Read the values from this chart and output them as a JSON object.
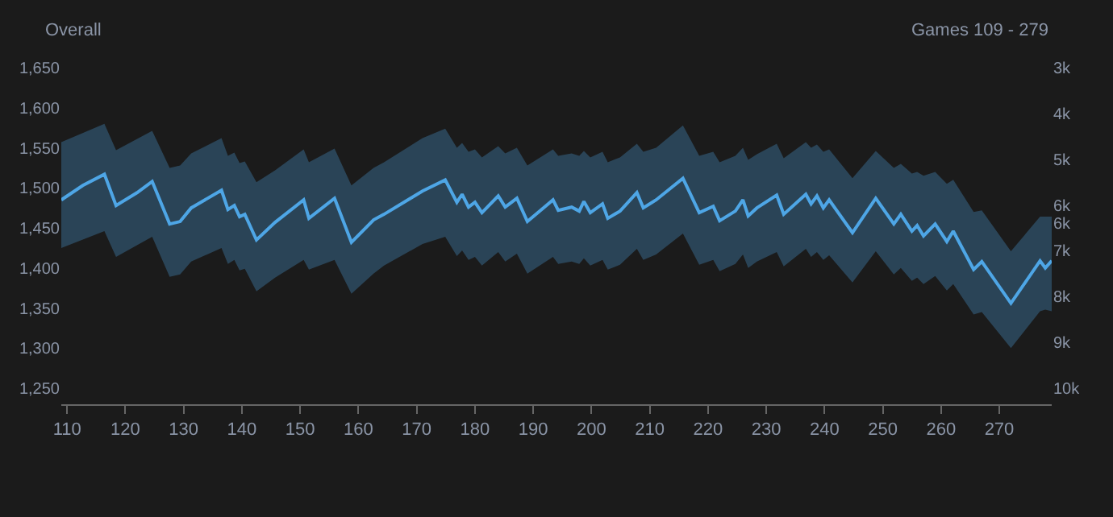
{
  "chart_data": {
    "type": "line",
    "title": "Overall",
    "annotations": [
      "Games 109 - 279"
    ],
    "x": [
      109,
      112.7,
      116.4,
      118.4,
      122,
      124.6,
      127.6,
      129.4,
      131.3,
      136.5,
      137.6,
      138.7,
      139.6,
      140.5,
      142.5,
      145.7,
      150.6,
      151.5,
      155.9,
      158.8,
      162.6,
      164.4,
      171,
      174.9,
      176.9,
      177.8,
      178.9,
      180,
      181.2,
      184,
      185.2,
      187.2,
      189,
      193.4,
      194.3,
      196.6,
      197.9,
      198.7,
      199.8,
      201.9,
      202.8,
      204.9,
      207.8,
      208.9,
      211.1,
      215.7,
      218.5,
      220.9,
      222,
      224.7,
      226,
      226.9,
      228.4,
      231.8,
      233,
      236.8,
      237.7,
      238.7,
      239.8,
      240.8,
      244.8,
      248.8,
      251.9,
      253.1,
      255,
      255.9,
      257,
      259,
      261,
      262.1,
      265.6,
      267,
      272,
      277,
      277.9,
      279
    ],
    "series": [
      {
        "color": "#4ea6e6",
        "values": [
          1485,
          1503,
          1517,
          1478,
          1494,
          1508,
          1455,
          1458,
          1475,
          1497,
          1473,
          1478,
          1464,
          1467,
          1435,
          1457,
          1485,
          1462,
          1487,
          1432,
          1460,
          1467,
          1496,
          1510,
          1482,
          1492,
          1476,
          1482,
          1469,
          1490,
          1476,
          1487,
          1458,
          1485,
          1472,
          1476,
          1471,
          1483,
          1469,
          1480,
          1462,
          1471,
          1494,
          1475,
          1485,
          1512,
          1469,
          1477,
          1459,
          1471,
          1485,
          1465,
          1475,
          1491,
          1467,
          1492,
          1480,
          1490,
          1475,
          1485,
          1444,
          1487,
          1455,
          1467,
          1446,
          1453,
          1440,
          1455,
          1433,
          1446,
          1398,
          1408,
          1356,
          1409,
          1400,
          1409
        ],
        "upper": [
          1557,
          1568,
          1580,
          1547,
          1560,
          1571,
          1525,
          1528,
          1543,
          1562,
          1540,
          1544,
          1531,
          1533,
          1507,
          1522,
          1548,
          1532,
          1549,
          1503,
          1525,
          1532,
          1562,
          1574,
          1550,
          1556,
          1545,
          1548,
          1538,
          1552,
          1543,
          1550,
          1528,
          1548,
          1540,
          1543,
          1540,
          1546,
          1538,
          1545,
          1532,
          1538,
          1555,
          1545,
          1550,
          1578,
          1540,
          1545,
          1532,
          1540,
          1550,
          1535,
          1542,
          1555,
          1537,
          1557,
          1550,
          1554,
          1545,
          1548,
          1512,
          1546,
          1525,
          1530,
          1518,
          1520,
          1515,
          1520,
          1505,
          1510,
          1470,
          1472,
          1421,
          1464,
          1464,
          1464
        ],
        "lower": [
          1425,
          1436,
          1446,
          1414,
          1428,
          1439,
          1389,
          1392,
          1408,
          1425,
          1405,
          1410,
          1397,
          1399,
          1371,
          1388,
          1410,
          1398,
          1410,
          1368,
          1393,
          1403,
          1430,
          1439,
          1415,
          1422,
          1410,
          1414,
          1403,
          1420,
          1408,
          1418,
          1393,
          1414,
          1405,
          1408,
          1405,
          1412,
          1403,
          1410,
          1398,
          1404,
          1424,
          1410,
          1417,
          1443,
          1404,
          1410,
          1396,
          1405,
          1417,
          1400,
          1408,
          1420,
          1402,
          1424,
          1414,
          1420,
          1410,
          1416,
          1382,
          1421,
          1392,
          1400,
          1384,
          1388,
          1380,
          1390,
          1372,
          1380,
          1342,
          1345,
          1300,
          1346,
          1348,
          1346
        ]
      }
    ],
    "xlim": [
      109,
      279
    ],
    "xticks": [
      110,
      120,
      130,
      140,
      150,
      160,
      170,
      180,
      190,
      200,
      210,
      220,
      230,
      240,
      250,
      260,
      270
    ],
    "ylim": [
      1230,
      1650
    ],
    "yticks": [
      {
        "value": 1250,
        "label": "1,250"
      },
      {
        "value": 1300,
        "label": "1,300"
      },
      {
        "value": 1350,
        "label": "1,350"
      },
      {
        "value": 1400,
        "label": "1,400"
      },
      {
        "value": 1450,
        "label": "1,450"
      },
      {
        "value": 1500,
        "label": "1,500"
      },
      {
        "value": 1550,
        "label": "1,550"
      },
      {
        "value": 1600,
        "label": "1,600"
      },
      {
        "value": 1650,
        "label": "1,650"
      }
    ],
    "y2lim": [
      10350,
      3000
    ],
    "y2ticks": [
      {
        "value": 3000,
        "label": "3k"
      },
      {
        "value": 4000,
        "label": "4k"
      },
      {
        "value": 5000,
        "label": "5k"
      },
      {
        "value": 6000,
        "label": "6k"
      },
      {
        "value": 6400,
        "label": "6k"
      },
      {
        "value": 7000,
        "label": "7k"
      },
      {
        "value": 8000,
        "label": "8k"
      },
      {
        "value": 9000,
        "label": "9k"
      },
      {
        "value": 10000,
        "label": "10k"
      }
    ],
    "grid": false,
    "marker": "none",
    "line_style": "solid"
  }
}
